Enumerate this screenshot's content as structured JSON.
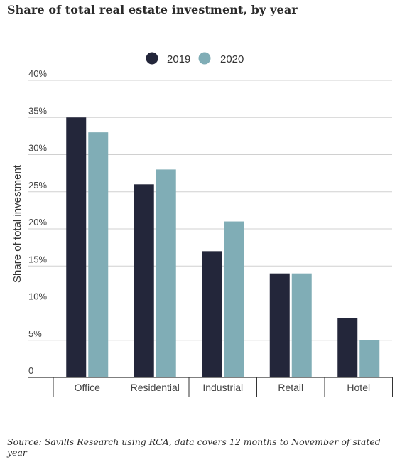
{
  "chart_data": {
    "type": "bar",
    "title": "Share of total real estate investment, by year",
    "xlabel": "",
    "ylabel": "Share of total investment",
    "categories": [
      "Office",
      "Residential",
      "Industrial",
      "Retail",
      "Hotel"
    ],
    "series": [
      {
        "name": "2019",
        "values": [
          35,
          26,
          17,
          14,
          8
        ],
        "color": "#23263a"
      },
      {
        "name": "2020",
        "values": [
          33,
          28,
          21,
          14,
          5
        ],
        "color": "#80adb6"
      }
    ],
    "ylim": [
      0,
      40
    ],
    "yticks": [
      0,
      5,
      10,
      15,
      20,
      25,
      30,
      35,
      40
    ],
    "ytick_labels": [
      "0",
      "5%",
      "10%",
      "15%",
      "20%",
      "25%",
      "30%",
      "35%",
      "40%"
    ],
    "grid": true,
    "legend_position": "top-center"
  },
  "footnote": "Source: Savills Research using RCA, data covers 12 months to November of stated year",
  "colors": {
    "gridline": "#d0d0d0",
    "axis": "#333333",
    "text": "#444444"
  }
}
